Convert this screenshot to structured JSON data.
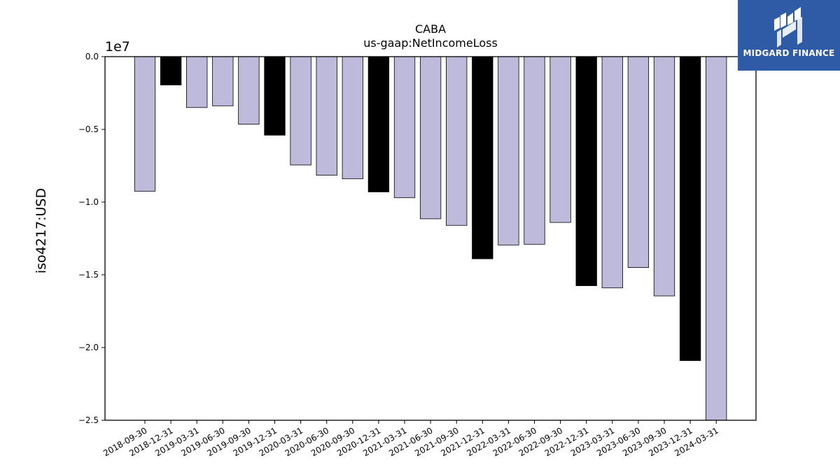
{
  "chart_data": {
    "type": "bar",
    "title": "CABA",
    "subtitle": "us-gaap:NetIncomeLoss",
    "ylabel": "iso4217:USD",
    "scale_label": "1e7",
    "ylim": [
      -25000000,
      0
    ],
    "yticks": [
      0,
      -5000000,
      -10000000,
      -15000000,
      -20000000,
      -25000000
    ],
    "ytick_labels": [
      "0.0",
      "−0.5",
      "−1.0",
      "−1.5",
      "−2.0",
      "−2.5"
    ],
    "categories": [
      "2018-09-30",
      "2018-12-31",
      "2019-03-31",
      "2019-06-30",
      "2019-09-30",
      "2019-12-31",
      "2020-03-31",
      "2020-06-30",
      "2020-09-30",
      "2020-12-31",
      "2021-03-31",
      "2021-06-30",
      "2021-09-30",
      "2021-12-31",
      "2022-03-31",
      "2022-06-30",
      "2022-09-30",
      "2022-12-31",
      "2023-03-31",
      "2023-06-30",
      "2023-09-30",
      "2023-12-31",
      "2024-03-31"
    ],
    "values": [
      -9250000,
      -1950000,
      -3500000,
      -3380000,
      -4650000,
      -5400000,
      -7450000,
      -8150000,
      -8400000,
      -9300000,
      -9700000,
      -11150000,
      -11600000,
      -13900000,
      -12950000,
      -12900000,
      -11400000,
      -15750000,
      -15900000,
      -14500000,
      -16450000,
      -20900000,
      -25000000
    ],
    "bar_colors": [
      "#bdbadb",
      "#000000",
      "#bdbadb",
      "#bdbadb",
      "#bdbadb",
      "#000000",
      "#bdbadb",
      "#bdbadb",
      "#bdbadb",
      "#000000",
      "#bdbadb",
      "#bdbadb",
      "#bdbadb",
      "#000000",
      "#bdbadb",
      "#bdbadb",
      "#bdbadb",
      "#000000",
      "#bdbadb",
      "#bdbadb",
      "#bdbadb",
      "#000000",
      "#bdbadb"
    ]
  },
  "logo": {
    "text": "MIDGARD FINANCE",
    "color": "#2f5aa6"
  }
}
